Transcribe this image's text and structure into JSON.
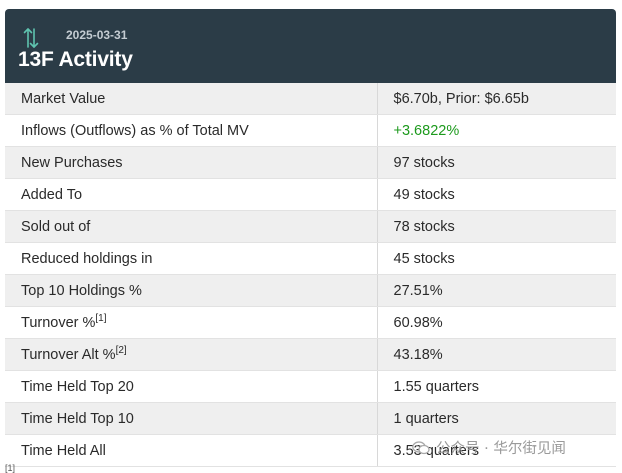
{
  "header": {
    "date": "2025-03-31",
    "title": "13F Activity"
  },
  "rows": [
    {
      "label": "Market Value",
      "sup": "",
      "value": "$6.70b, Prior: $6.65b"
    },
    {
      "label": "Inflows (Outflows) as % of Total MV",
      "sup": "",
      "value": "+3.6822%"
    },
    {
      "label": "New Purchases",
      "sup": "",
      "value": "97 stocks"
    },
    {
      "label": "Added To",
      "sup": "",
      "value": "49 stocks"
    },
    {
      "label": "Sold out of",
      "sup": "",
      "value": "78 stocks"
    },
    {
      "label": "Reduced holdings in",
      "sup": "",
      "value": "45 stocks"
    },
    {
      "label": "Top 10 Holdings %",
      "sup": "",
      "value": "27.51%"
    },
    {
      "label": "Turnover %",
      "sup": "[1]",
      "value": "60.98%"
    },
    {
      "label": "Turnover Alt %",
      "sup": "[2]",
      "value": "43.18%"
    },
    {
      "label": "Time Held Top 20",
      "sup": "",
      "value": "1.55 quarters"
    },
    {
      "label": "Time Held Top 10",
      "sup": "",
      "value": "1 quarters"
    },
    {
      "label": "Time Held All",
      "sup": "",
      "value": "3.53 quarters"
    }
  ],
  "watermark": {
    "text": "公众号 · 华尔街见闻"
  },
  "footnote": "[1]",
  "colors": {
    "header_bg": "#2b3c47",
    "positive": "#1d9a1d",
    "stripe": "#efefef"
  }
}
